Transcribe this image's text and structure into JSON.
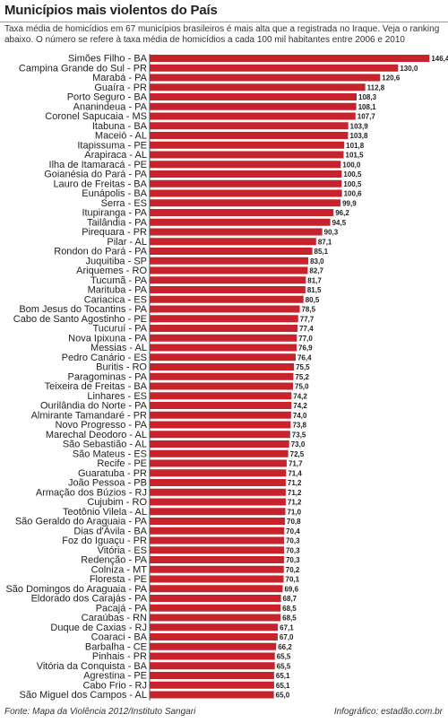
{
  "title": "Municípios mais violentos do País",
  "subtitle": "Taxa média de homicídios em 67 municípios brasileiros é mais alta que a registrada no Iraque. Veja o ranking abaixo. O número se refere à taxa média de homicídios a cada 100 mil habitantes entre 2006 e 2010",
  "footer": {
    "source": "Fonte: Mapa da Violência 2012/Instituto Sangari",
    "credit": "Infográfico: estadão.com.br"
  },
  "colors": {
    "bar": "#c8232c",
    "text": "#222222"
  },
  "chart_data": {
    "type": "bar",
    "orientation": "horizontal",
    "title": "Municípios mais violentos do País",
    "xlim": [
      0,
      150
    ],
    "grid": false,
    "categories": [
      "Simões Filho - BA",
      "Campina Grande do Sul - PR",
      "Marabá - PA",
      "Guaíra - PR",
      "Porto Seguro - BA",
      "Ananindeua - PA",
      "Coronel Sapucaia - MS",
      "Itabuna - BA",
      "Maceió - AL",
      "Itapissuma - PE",
      "Arapiraca - AL",
      "Ilha de Itamaracá - PE",
      "Goianésia do Pará - PA",
      "Lauro de Freitas - BA",
      "Eunápolis - BA",
      "Serra - ES",
      "Itupiranga - PA",
      "Tailândia - PA",
      "Pirequara - PR",
      "Pilar - AL",
      "Rondon do Pará - PA",
      "Juquitiba - SP",
      "Ariquemes - RO",
      "Tucumã - PA",
      "Marituba - PA",
      "Cariacica - ES",
      "Bom Jesus do Tocantins - PA",
      "Cabo de Santo Agostinho - PE",
      "Tucuruí - PA",
      "Nova Ipixuna - PA",
      "Messias - AL",
      "Pedro Canário - ES",
      "Buritis - RO",
      "Paragominas - PA",
      "Teixeira de Freitas - BA",
      "Linhares - ES",
      "Ourilândia do Norte - PA",
      "Almirante Tamandaré - PR",
      "Novo Progresso - PA",
      "Marechal Deodoro - AL",
      "São Sebastião - AL",
      "São Mateus - ES",
      "Recife - PE",
      "Guaratuba - PR",
      "João Pessoa - PB",
      "Armação dos Búzios - RJ",
      "Cujubim - RO",
      "Teotônio Vilela - AL",
      "São Geraldo do Araguaia - PA",
      "Dias d'Ávila - BA",
      "Foz do Iguaçu - PR",
      "Vitória - ES",
      "Redenção - PA",
      "Colniza - MT",
      "Floresta - PE",
      "São Domingos do Araguaia - PA",
      "Eldorado dos Carajás - PA",
      "Pacajá - PA",
      "Caraúbas - RN",
      "Duque de Caxias - RJ",
      "Coaraci - BA",
      "Barbalha - CE",
      "Pinhais - PR",
      "Vitória da Conquista - BA",
      "Agrestina - PE",
      "Cabo Frio - RJ",
      "São Miguel dos Campos - AL"
    ],
    "values": [
      146.4,
      130.0,
      120.6,
      112.8,
      108.3,
      108.1,
      107.7,
      103.9,
      103.8,
      101.8,
      101.5,
      100.0,
      100.5,
      100.5,
      100.6,
      99.9,
      96.2,
      94.5,
      90.3,
      87.1,
      85.1,
      83.0,
      82.7,
      81.7,
      81.5,
      80.5,
      78.5,
      77.7,
      77.4,
      77.0,
      76.9,
      76.4,
      75.5,
      75.2,
      75.0,
      74.2,
      74.2,
      74.0,
      73.8,
      73.5,
      73.0,
      72.5,
      71.7,
      71.4,
      71.2,
      71.2,
      71.2,
      71.0,
      70.8,
      70.4,
      70.3,
      70.3,
      70.3,
      70.2,
      70.1,
      69.6,
      68.7,
      68.5,
      68.5,
      67.1,
      67.0,
      66.2,
      65.5,
      65.5,
      65.1,
      65.1,
      65.0
    ],
    "value_labels": [
      "146,4",
      "130,0",
      "120,6",
      "112,8",
      "108,3",
      "108,1",
      "107,7",
      "103,9",
      "103,8",
      "101,8",
      "101,5",
      "100,0",
      "100,5",
      "100,5",
      "100,6",
      "99,9",
      "96,2",
      "94,5",
      "90,3",
      "87,1",
      "85,1",
      "83,0",
      "82,7",
      "81,7",
      "81,5",
      "80,5",
      "78,5",
      "77,7",
      "77,4",
      "77,0",
      "76,9",
      "76,4",
      "75,5",
      "75,2",
      "75,0",
      "74,2",
      "74,2",
      "74,0",
      "73,8",
      "73,5",
      "73,0",
      "72,5",
      "71,7",
      "71,4",
      "71,2",
      "71,2",
      "71,2",
      "71,0",
      "70,8",
      "70,4",
      "70,3",
      "70,3",
      "70,3",
      "70,2",
      "70,1",
      "69,6",
      "68,7",
      "68,5",
      "68,5",
      "67,1",
      "67,0",
      "66,2",
      "65,5",
      "65,5",
      "65,1",
      "65,1",
      "65,0"
    ]
  }
}
